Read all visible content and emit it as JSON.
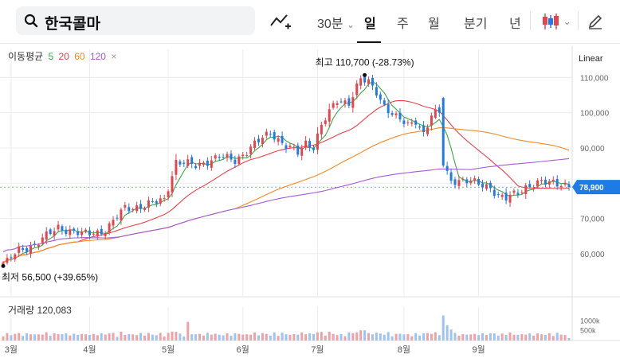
{
  "search": {
    "query": "한국콜마"
  },
  "toolbar": {
    "interval_30m": "30분",
    "interval_30m_caret": "⌄",
    "period_day": "일",
    "period_week": "주",
    "period_month": "월",
    "period_quarter": "분기",
    "period_year": "년",
    "chart_type_caret": "⌄"
  },
  "moving_average": {
    "label": "이동평균",
    "periods": [
      {
        "period": "5",
        "color": "#37a845"
      },
      {
        "period": "20",
        "color": "#e8424a"
      },
      {
        "period": "60",
        "color": "#f08a24"
      },
      {
        "period": "120",
        "color": "#a35bd6"
      }
    ],
    "close_symbol": "×"
  },
  "scale_mode": "Linear",
  "colors": {
    "up": "#e8424a",
    "down": "#1e7be6",
    "grid": "#ececec"
  },
  "chart_data": {
    "type": "candlestick",
    "title": "한국콜마",
    "ylim": [
      48000,
      118000
    ],
    "y_ticks": [
      60000,
      70000,
      80000,
      90000,
      100000,
      110000
    ],
    "y_tick_labels": [
      "60,000",
      "70,000",
      "80,000",
      "90,000",
      "100,000",
      "110,000"
    ],
    "x_tick_labels": [
      "3월",
      "4월",
      "5월",
      "6월",
      "7월",
      "8월",
      "9월"
    ],
    "x_tick_positions": [
      2,
      22,
      42,
      61,
      80,
      102,
      121
    ],
    "num_sessions": 145,
    "current_price": 78900,
    "current_price_label": "78,900",
    "high_annotation": {
      "label": "최고 110,700 (-28.73%)",
      "value": 110700,
      "index": 92
    },
    "low_annotation": {
      "label": "최저 56,500 (+39.65%)",
      "value": 56500,
      "index": 0
    },
    "volume": {
      "label": "거래량 120,083",
      "value": 120083,
      "axis_labels": [
        "1000k",
        "500k"
      ],
      "axis_values": [
        1000000,
        500000
      ]
    }
  }
}
